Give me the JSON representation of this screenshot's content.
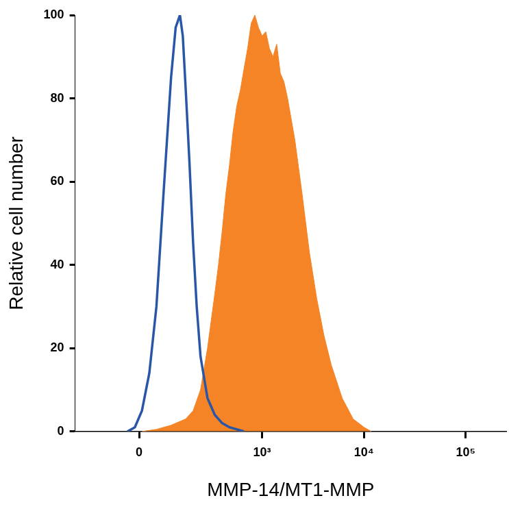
{
  "chart_data": {
    "type": "line",
    "x_label": "MMP-14/MT1-MMP",
    "y_label": "Relative cell number",
    "xlim": [
      -250,
      250000
    ],
    "xticks": [
      0,
      {
        "value": 1000,
        "label": "10³"
      },
      {
        "value": 10000,
        "label": "10⁴"
      },
      {
        "value": 100000,
        "label": "10⁵"
      }
    ],
    "ylim": [
      0,
      100
    ],
    "yticks": [
      0,
      20,
      40,
      60,
      80,
      100
    ],
    "grid": false,
    "series": [
      {
        "color": "#2a56a8",
        "line_style": "solid",
        "marker": "none",
        "x": [
          -33,
          -12,
          8,
          29,
          50,
          73,
          98,
          115,
          132,
          144,
          157,
          174,
          193,
          212,
          234,
          279,
          333,
          397,
          472,
          660
        ],
        "values": [
          0,
          1,
          5,
          14,
          30,
          58,
          85,
          97,
          100,
          95,
          82,
          65,
          45,
          30,
          18,
          8,
          4,
          2,
          1,
          0
        ]
      },
      {
        "color": "#f58426",
        "line_style": "filled",
        "marker": "none",
        "x": [
          8,
          50,
          98,
          157,
          193,
          234,
          279,
          333,
          364,
          397,
          433,
          472,
          513,
          558,
          608,
          660,
          718,
          779,
          847,
          920,
          1001,
          1087,
          1180,
          1281,
          1393,
          1513,
          1642,
          1783,
          2103,
          2478,
          2923,
          3444,
          4062,
          4785,
          6130,
          7850,
          10043,
          11837
        ],
        "values": [
          0,
          0.5,
          1.5,
          3,
          5,
          10,
          20,
          33,
          40,
          48,
          57,
          64,
          72,
          78,
          82,
          87,
          92,
          98,
          100,
          97,
          95,
          96,
          92,
          90,
          93,
          86,
          84,
          80,
          70,
          57,
          43,
          32,
          23,
          16,
          8,
          3,
          1,
          0
        ]
      }
    ]
  }
}
